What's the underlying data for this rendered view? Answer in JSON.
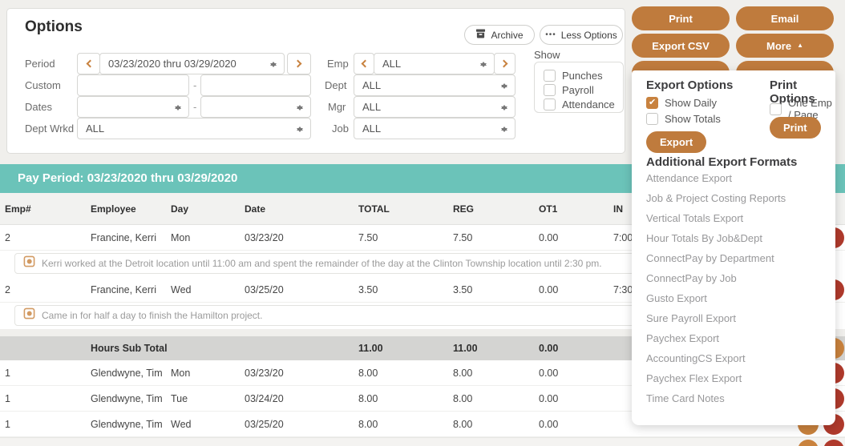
{
  "options": {
    "title": "Options",
    "archive_label": "Archive",
    "less_options_label": "Less Options",
    "separator": "-",
    "period": {
      "label": "Period",
      "value": "03/23/2020 thru 03/29/2020"
    },
    "custom": {
      "label": "Custom",
      "value1": "",
      "value2": ""
    },
    "dates": {
      "label": "Dates",
      "value1": "",
      "value2": ""
    },
    "dept_wrkd": {
      "label": "Dept Wrkd",
      "value": "ALL"
    },
    "emp": {
      "label": "Emp",
      "value": "ALL"
    },
    "dept": {
      "label": "Dept",
      "value": "ALL"
    },
    "mgr": {
      "label": "Mgr",
      "value": "ALL"
    },
    "job": {
      "label": "Job",
      "value": "ALL"
    },
    "show": {
      "label": "Show",
      "checkboxes": [
        {
          "label": "Punches",
          "checked": false
        },
        {
          "label": "Payroll",
          "checked": false
        },
        {
          "label": "Attendance",
          "checked": false
        }
      ]
    }
  },
  "icons": {
    "ellipsis": "•••",
    "more_caret": "▲"
  },
  "actions": {
    "print": "Print",
    "email": "Email",
    "export_csv": "Export CSV",
    "more": "More"
  },
  "more_dropdown": {
    "export_options": {
      "title": "Export Options",
      "checkboxes": [
        {
          "label": "Show Daily",
          "checked": true
        },
        {
          "label": "Show Totals",
          "checked": false
        }
      ],
      "export_button": "Export"
    },
    "print_options": {
      "title": "Print Options",
      "checkboxes": [
        {
          "label": "One Emp / Page",
          "checked": false
        }
      ],
      "print_button": "Print"
    },
    "additional_formats": {
      "title": "Additional Export Formats",
      "items": [
        "Attendance Export",
        "Job & Project Costing Reports",
        "Vertical Totals Export",
        "Hour Totals By Job&Dept",
        "ConnectPay by Department",
        "ConnectPay by Job",
        "Gusto Export",
        "Sure Payroll Export",
        "Paychex Export",
        "AccountingCS Export",
        "Paychex Flex Export",
        "Time Card Notes"
      ]
    }
  },
  "table": {
    "pay_period_header": "Pay Period: 03/23/2020 thru 03/29/2020",
    "columns": {
      "emp": "Emp#",
      "employee": "Employee",
      "day": "Day",
      "date": "Date",
      "total": "TOTAL",
      "reg": "REG",
      "ot1": "OT1",
      "in": "IN"
    },
    "rows": [
      {
        "type": "data",
        "emp": "2",
        "employee": "Francine, Kerri",
        "day": "Mon",
        "date": "03/23/20",
        "total": "7.50",
        "reg": "7.50",
        "ot1": "0.00",
        "in": "7:00 AM"
      },
      {
        "type": "note",
        "text": "Kerri worked at the Detroit location until 11:00 am and spent the remainder of the day at the Clinton Township location until 2:30 pm."
      },
      {
        "type": "data",
        "emp": "2",
        "employee": "Francine, Kerri",
        "day": "Wed",
        "date": "03/25/20",
        "total": "3.50",
        "reg": "3.50",
        "ot1": "0.00",
        "in": "7:30 AM"
      },
      {
        "type": "note",
        "text": "Came in for half a day to finish the Hamilton project."
      },
      {
        "type": "subtotal",
        "label": "Hours Sub Total",
        "total": "11.00",
        "reg": "11.00",
        "ot1": "0.00"
      },
      {
        "type": "data",
        "emp": "1",
        "employee": "Glendwyne, Tim",
        "day": "Mon",
        "date": "03/23/20",
        "total": "8.00",
        "reg": "8.00",
        "ot1": "0.00",
        "in": ""
      },
      {
        "type": "data",
        "emp": "1",
        "employee": "Glendwyne, Tim",
        "day": "Tue",
        "date": "03/24/20",
        "total": "8.00",
        "reg": "8.00",
        "ot1": "0.00",
        "in": ""
      },
      {
        "type": "data",
        "emp": "1",
        "employee": "Glendwyne, Tim",
        "day": "Wed",
        "date": "03/25/20",
        "total": "8.00",
        "reg": "8.00",
        "ot1": "0.00",
        "in": ""
      }
    ]
  },
  "colors": {
    "accent_orange": "#BF7B3D",
    "teal": "#6BC3B9",
    "in_green": "#3FA264",
    "delete_red": "#B03A2C"
  }
}
